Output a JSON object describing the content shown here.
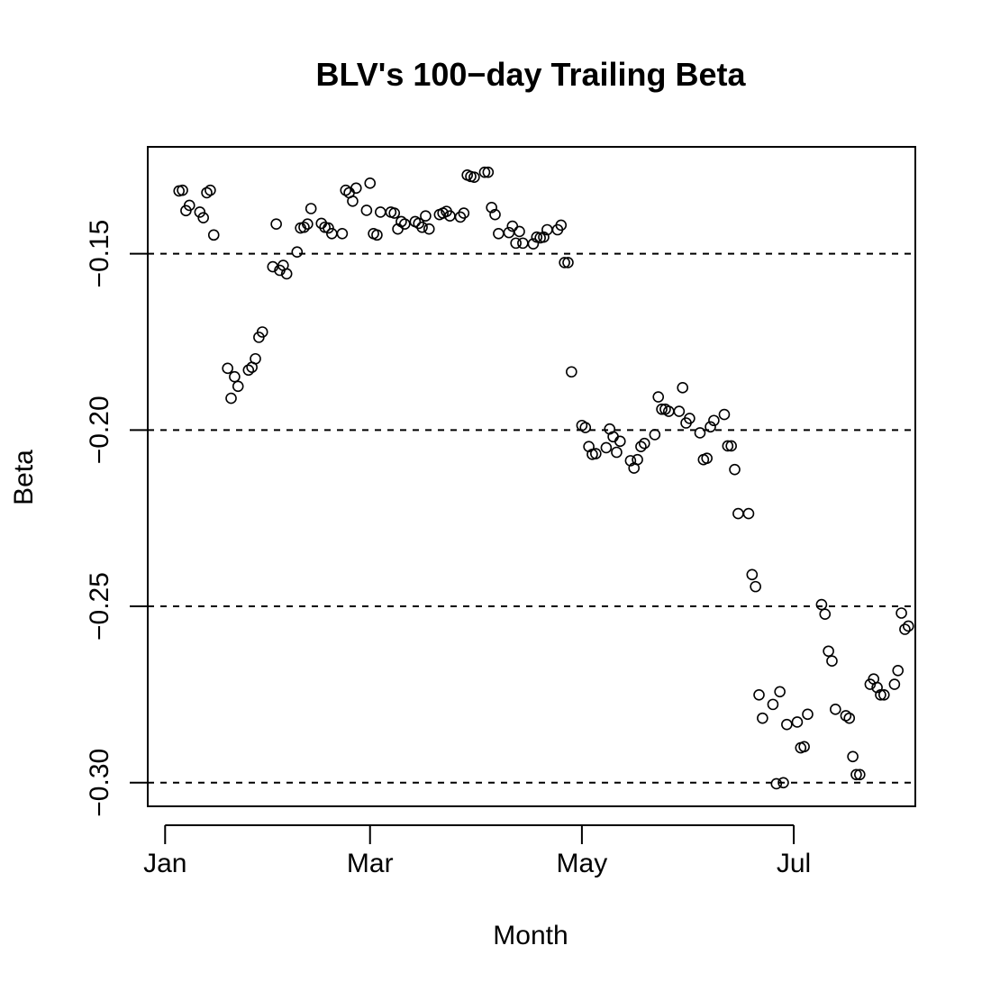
{
  "chart_data": {
    "type": "scatter",
    "title": "BLV's 100−day Trailing Beta",
    "xlabel": "Month",
    "ylabel": "Beta",
    "x_ticks": [
      {
        "label": "Jan",
        "day": 0
      },
      {
        "label": "Mar",
        "day": 59
      },
      {
        "label": "May",
        "day": 120
      },
      {
        "label": "Jul",
        "day": 181
      }
    ],
    "y_ticks": [
      {
        "label": "−0.15",
        "value": -0.15
      },
      {
        "label": "−0.20",
        "value": -0.2
      },
      {
        "label": "−0.25",
        "value": -0.25
      },
      {
        "label": "−0.30",
        "value": -0.3
      }
    ],
    "xlim": [
      -5,
      216
    ],
    "ylim": [
      -0.3067,
      -0.1197
    ],
    "grid": "dashed horizontal lines at y ticks",
    "series": [
      {
        "marker": "open-circle",
        "points": [
          [
            4,
            -0.1322
          ],
          [
            5,
            -0.132
          ],
          [
            6,
            -0.1378
          ],
          [
            7,
            -0.1363
          ],
          [
            10,
            -0.1382
          ],
          [
            11,
            -0.1398
          ],
          [
            12,
            -0.1327
          ],
          [
            13,
            -0.132
          ],
          [
            14,
            -0.1447
          ],
          [
            18,
            -0.1825
          ],
          [
            19,
            -0.191
          ],
          [
            20,
            -0.1849
          ],
          [
            21,
            -0.1876
          ],
          [
            24,
            -0.183
          ],
          [
            25,
            -0.1822
          ],
          [
            26,
            -0.1798
          ],
          [
            27,
            -0.1737
          ],
          [
            28,
            -0.1722
          ],
          [
            31,
            -0.1537
          ],
          [
            32,
            -0.1416
          ],
          [
            33,
            -0.1547
          ],
          [
            34,
            -0.1533
          ],
          [
            35,
            -0.1557
          ],
          [
            38,
            -0.1495
          ],
          [
            39,
            -0.1427
          ],
          [
            40,
            -0.1425
          ],
          [
            41,
            -0.1416
          ],
          [
            42,
            -0.1372
          ],
          [
            45,
            -0.1414
          ],
          [
            46,
            -0.1425
          ],
          [
            47,
            -0.1427
          ],
          [
            48,
            -0.1443
          ],
          [
            51,
            -0.1443
          ],
          [
            52,
            -0.132
          ],
          [
            53,
            -0.1327
          ],
          [
            54,
            -0.1351
          ],
          [
            55,
            -0.1314
          ],
          [
            58,
            -0.1377
          ],
          [
            59,
            -0.13
          ],
          [
            60,
            -0.1443
          ],
          [
            61,
            -0.1447
          ],
          [
            62,
            -0.1382
          ],
          [
            65,
            -0.1382
          ],
          [
            66,
            -0.1385
          ],
          [
            67,
            -0.143
          ],
          [
            68,
            -0.1409
          ],
          [
            69,
            -0.1416
          ],
          [
            72,
            -0.1409
          ],
          [
            73,
            -0.1414
          ],
          [
            74,
            -0.1425
          ],
          [
            75,
            -0.1393
          ],
          [
            76,
            -0.143
          ],
          [
            79,
            -0.1389
          ],
          [
            80,
            -0.1385
          ],
          [
            81,
            -0.138
          ],
          [
            82,
            -0.1393
          ],
          [
            85,
            -0.1396
          ],
          [
            86,
            -0.1385
          ],
          [
            87,
            -0.1277
          ],
          [
            88,
            -0.1281
          ],
          [
            89,
            -0.1283
          ],
          [
            92,
            -0.1269
          ],
          [
            93,
            -0.1269
          ],
          [
            94,
            -0.1369
          ],
          [
            95,
            -0.1389
          ],
          [
            96,
            -0.1443
          ],
          [
            99,
            -0.144
          ],
          [
            100,
            -0.1422
          ],
          [
            101,
            -0.147
          ],
          [
            102,
            -0.1437
          ],
          [
            103,
            -0.147
          ],
          [
            106,
            -0.1472
          ],
          [
            107,
            -0.1453
          ],
          [
            108,
            -0.1455
          ],
          [
            109,
            -0.1453
          ],
          [
            110,
            -0.1432
          ],
          [
            113,
            -0.1432
          ],
          [
            114,
            -0.1419
          ],
          [
            115,
            -0.1525
          ],
          [
            116,
            -0.1525
          ],
          [
            117,
            -0.1835
          ],
          [
            120,
            -0.1987
          ],
          [
            121,
            -0.1993
          ],
          [
            122,
            -0.2047
          ],
          [
            123,
            -0.2069
          ],
          [
            124,
            -0.2067
          ],
          [
            127,
            -0.205
          ],
          [
            128,
            -0.1997
          ],
          [
            129,
            -0.2019
          ],
          [
            130,
            -0.2063
          ],
          [
            131,
            -0.2032
          ],
          [
            134,
            -0.2087
          ],
          [
            135,
            -0.2108
          ],
          [
            136,
            -0.2084
          ],
          [
            137,
            -0.2047
          ],
          [
            138,
            -0.2038
          ],
          [
            141,
            -0.2013
          ],
          [
            142,
            -0.1906
          ],
          [
            143,
            -0.1941
          ],
          [
            144,
            -0.1941
          ],
          [
            145,
            -0.1947
          ],
          [
            148,
            -0.1947
          ],
          [
            149,
            -0.188
          ],
          [
            150,
            -0.198
          ],
          [
            151,
            -0.1967
          ],
          [
            154,
            -0.2008
          ],
          [
            155,
            -0.2084
          ],
          [
            156,
            -0.208
          ],
          [
            157,
            -0.1991
          ],
          [
            158,
            -0.1973
          ],
          [
            161,
            -0.1956
          ],
          [
            162,
            -0.2045
          ],
          [
            163,
            -0.2045
          ],
          [
            164,
            -0.2112
          ],
          [
            165,
            -0.2237
          ],
          [
            168,
            -0.2237
          ],
          [
            169,
            -0.241
          ],
          [
            170,
            -0.2444
          ],
          [
            171,
            -0.2751
          ],
          [
            172,
            -0.2817
          ],
          [
            175,
            -0.2778
          ],
          [
            176,
            -0.3003
          ],
          [
            177,
            -0.2742
          ],
          [
            178,
            -0.3
          ],
          [
            179,
            -0.2835
          ],
          [
            182,
            -0.2828
          ],
          [
            183,
            -0.2901
          ],
          [
            184,
            -0.2898
          ],
          [
            185,
            -0.2806
          ],
          [
            189,
            -0.2495
          ],
          [
            190,
            -0.2522
          ],
          [
            191,
            -0.2627
          ],
          [
            192,
            -0.2655
          ],
          [
            193,
            -0.2792
          ],
          [
            196,
            -0.281
          ],
          [
            197,
            -0.2817
          ],
          [
            198,
            -0.2926
          ],
          [
            199,
            -0.2977
          ],
          [
            200,
            -0.2977
          ],
          [
            203,
            -0.2721
          ],
          [
            204,
            -0.2706
          ],
          [
            205,
            -0.273
          ],
          [
            206,
            -0.2751
          ],
          [
            207,
            -0.2751
          ],
          [
            210,
            -0.2721
          ],
          [
            211,
            -0.2682
          ],
          [
            212,
            -0.2519
          ],
          [
            213,
            -0.2565
          ],
          [
            214,
            -0.2556
          ]
        ]
      }
    ]
  }
}
